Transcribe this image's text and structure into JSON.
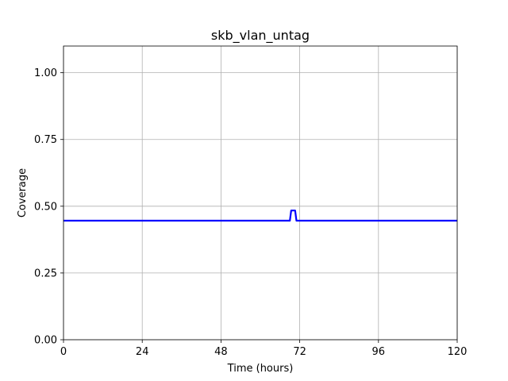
{
  "chart_data": {
    "type": "line",
    "title": "skb_vlan_untag",
    "xlabel": "Time (hours)",
    "ylabel": "Coverage",
    "xlim": [
      0,
      120
    ],
    "ylim": [
      0,
      1.1
    ],
    "xticks": [
      0,
      24,
      48,
      72,
      96,
      120
    ],
    "xtick_labels": [
      "0",
      "24",
      "48",
      "72",
      "96",
      "120"
    ],
    "yticks": [
      0.0,
      0.25,
      0.5,
      0.75,
      1.0
    ],
    "ytick_labels": [
      "0.00",
      "0.25",
      "0.50",
      "0.75",
      "1.00"
    ],
    "grid": true,
    "series": [
      {
        "color": "#0000ff",
        "x": [
          0,
          69.0,
          69.4,
          70.6,
          71.0,
          120
        ],
        "y": [
          0.446,
          0.446,
          0.484,
          0.484,
          0.446,
          0.446
        ]
      }
    ]
  }
}
